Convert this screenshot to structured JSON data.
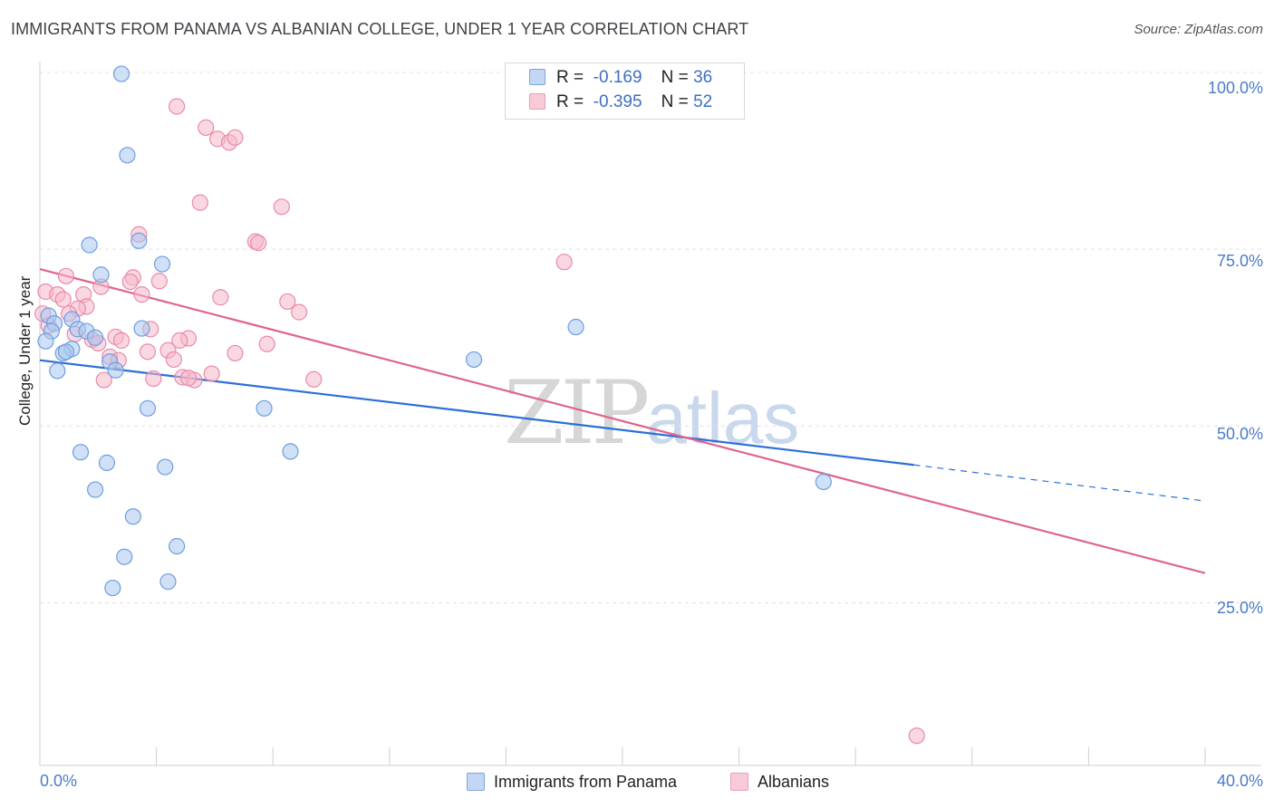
{
  "title": "IMMIGRANTS FROM PANAMA VS ALBANIAN COLLEGE, UNDER 1 YEAR CORRELATION CHART",
  "source": "Source: ZipAtlas.com",
  "watermark": {
    "zip": "ZIP",
    "atlas": "atlas"
  },
  "legend": {
    "rows": [
      {
        "r_label": "R =",
        "r_value": "-0.169",
        "n_label": "N =",
        "n_value": "36"
      },
      {
        "r_label": "R =",
        "r_value": "-0.395",
        "n_label": "N =",
        "n_value": "52"
      }
    ]
  },
  "bottom_legend": {
    "series1": "Immigrants from Panama",
    "series2": "Albanians"
  },
  "colors": {
    "blue_fill": "#aac7ef",
    "blue_stroke": "#6f9ee0",
    "blue_line": "#2b6fd6",
    "pink_fill": "#f6b8cb",
    "pink_stroke": "#ea8aa9",
    "pink_line": "#e0648e",
    "grid": "#e0e0e0",
    "tick_text": "#4a7cc7"
  },
  "chart_data": {
    "type": "scatter",
    "title": "IMMIGRANTS FROM PANAMA VS ALBANIAN COLLEGE, UNDER 1 YEAR CORRELATION CHART",
    "xlabel": "",
    "ylabel": "College, Under 1 year",
    "xlim": [
      0,
      40
    ],
    "ylim": [
      2,
      100
    ],
    "x_tick_labels": [
      "0.0%",
      "40.0%"
    ],
    "y_ticks": [
      25,
      50,
      75,
      100
    ],
    "y_tick_labels": [
      "25.0%",
      "50.0%",
      "75.0%",
      "100.0%"
    ],
    "grid": true,
    "legend_position": "top-center",
    "series": [
      {
        "name": "Immigrants from Panama",
        "r": -0.169,
        "n": 36,
        "points": [
          [
            2.8,
            99.8
          ],
          [
            3.0,
            88.3
          ],
          [
            1.7,
            75.6
          ],
          [
            3.4,
            76.2
          ],
          [
            4.2,
            72.9
          ],
          [
            2.1,
            71.4
          ],
          [
            0.3,
            65.6
          ],
          [
            0.5,
            64.5
          ],
          [
            0.4,
            63.4
          ],
          [
            1.1,
            65.1
          ],
          [
            1.3,
            63.7
          ],
          [
            1.6,
            63.4
          ],
          [
            1.9,
            62.5
          ],
          [
            3.5,
            63.8
          ],
          [
            0.2,
            62.0
          ],
          [
            1.1,
            60.9
          ],
          [
            0.8,
            60.3
          ],
          [
            0.9,
            60.5
          ],
          [
            2.4,
            59.1
          ],
          [
            2.6,
            57.9
          ],
          [
            0.6,
            57.8
          ],
          [
            14.9,
            59.4
          ],
          [
            18.4,
            64.0
          ],
          [
            3.7,
            52.5
          ],
          [
            7.7,
            52.5
          ],
          [
            1.4,
            46.3
          ],
          [
            2.3,
            44.8
          ],
          [
            8.6,
            46.4
          ],
          [
            4.3,
            44.2
          ],
          [
            1.9,
            41.0
          ],
          [
            3.2,
            37.2
          ],
          [
            2.9,
            31.5
          ],
          [
            4.7,
            33.0
          ],
          [
            4.4,
            28.0
          ],
          [
            2.5,
            27.1
          ],
          [
            26.9,
            42.1
          ]
        ],
        "trend": {
          "x_start": 0,
          "y_start": 59.3,
          "x_solid_end": 30,
          "y_solid_end": 44.5,
          "x_end": 40,
          "y_end": 39.4
        }
      },
      {
        "name": "Albanians",
        "r": -0.395,
        "n": 52,
        "points": [
          [
            4.7,
            95.2
          ],
          [
            5.7,
            92.2
          ],
          [
            6.1,
            90.6
          ],
          [
            6.5,
            90.1
          ],
          [
            6.7,
            90.8
          ],
          [
            5.5,
            81.6
          ],
          [
            8.3,
            81.0
          ],
          [
            3.4,
            77.1
          ],
          [
            7.4,
            76.1
          ],
          [
            7.5,
            75.9
          ],
          [
            18.0,
            73.2
          ],
          [
            0.9,
            71.2
          ],
          [
            3.2,
            71.0
          ],
          [
            3.1,
            70.4
          ],
          [
            4.1,
            70.5
          ],
          [
            2.1,
            69.7
          ],
          [
            0.2,
            69.0
          ],
          [
            0.6,
            68.6
          ],
          [
            0.8,
            67.9
          ],
          [
            1.5,
            68.6
          ],
          [
            3.5,
            68.6
          ],
          [
            6.2,
            68.2
          ],
          [
            8.5,
            67.6
          ],
          [
            1.6,
            66.9
          ],
          [
            1.3,
            66.6
          ],
          [
            1.0,
            65.9
          ],
          [
            8.9,
            66.1
          ],
          [
            0.1,
            65.9
          ],
          [
            0.3,
            64.2
          ],
          [
            3.8,
            63.7
          ],
          [
            1.2,
            63.0
          ],
          [
            2.6,
            62.6
          ],
          [
            1.8,
            62.2
          ],
          [
            2.8,
            62.1
          ],
          [
            5.1,
            62.4
          ],
          [
            4.8,
            62.1
          ],
          [
            7.8,
            61.6
          ],
          [
            2.0,
            61.7
          ],
          [
            4.4,
            60.7
          ],
          [
            3.7,
            60.5
          ],
          [
            2.4,
            59.8
          ],
          [
            6.7,
            60.3
          ],
          [
            2.7,
            59.3
          ],
          [
            4.6,
            59.4
          ],
          [
            5.9,
            57.4
          ],
          [
            4.9,
            56.9
          ],
          [
            3.9,
            56.7
          ],
          [
            5.3,
            56.5
          ],
          [
            2.2,
            56.5
          ],
          [
            9.4,
            56.6
          ],
          [
            5.1,
            56.8
          ],
          [
            30.1,
            6.2
          ]
        ],
        "trend": {
          "x_start": 0,
          "y_start": 72.2,
          "x_end": 40,
          "y_end": 29.2
        }
      }
    ]
  }
}
